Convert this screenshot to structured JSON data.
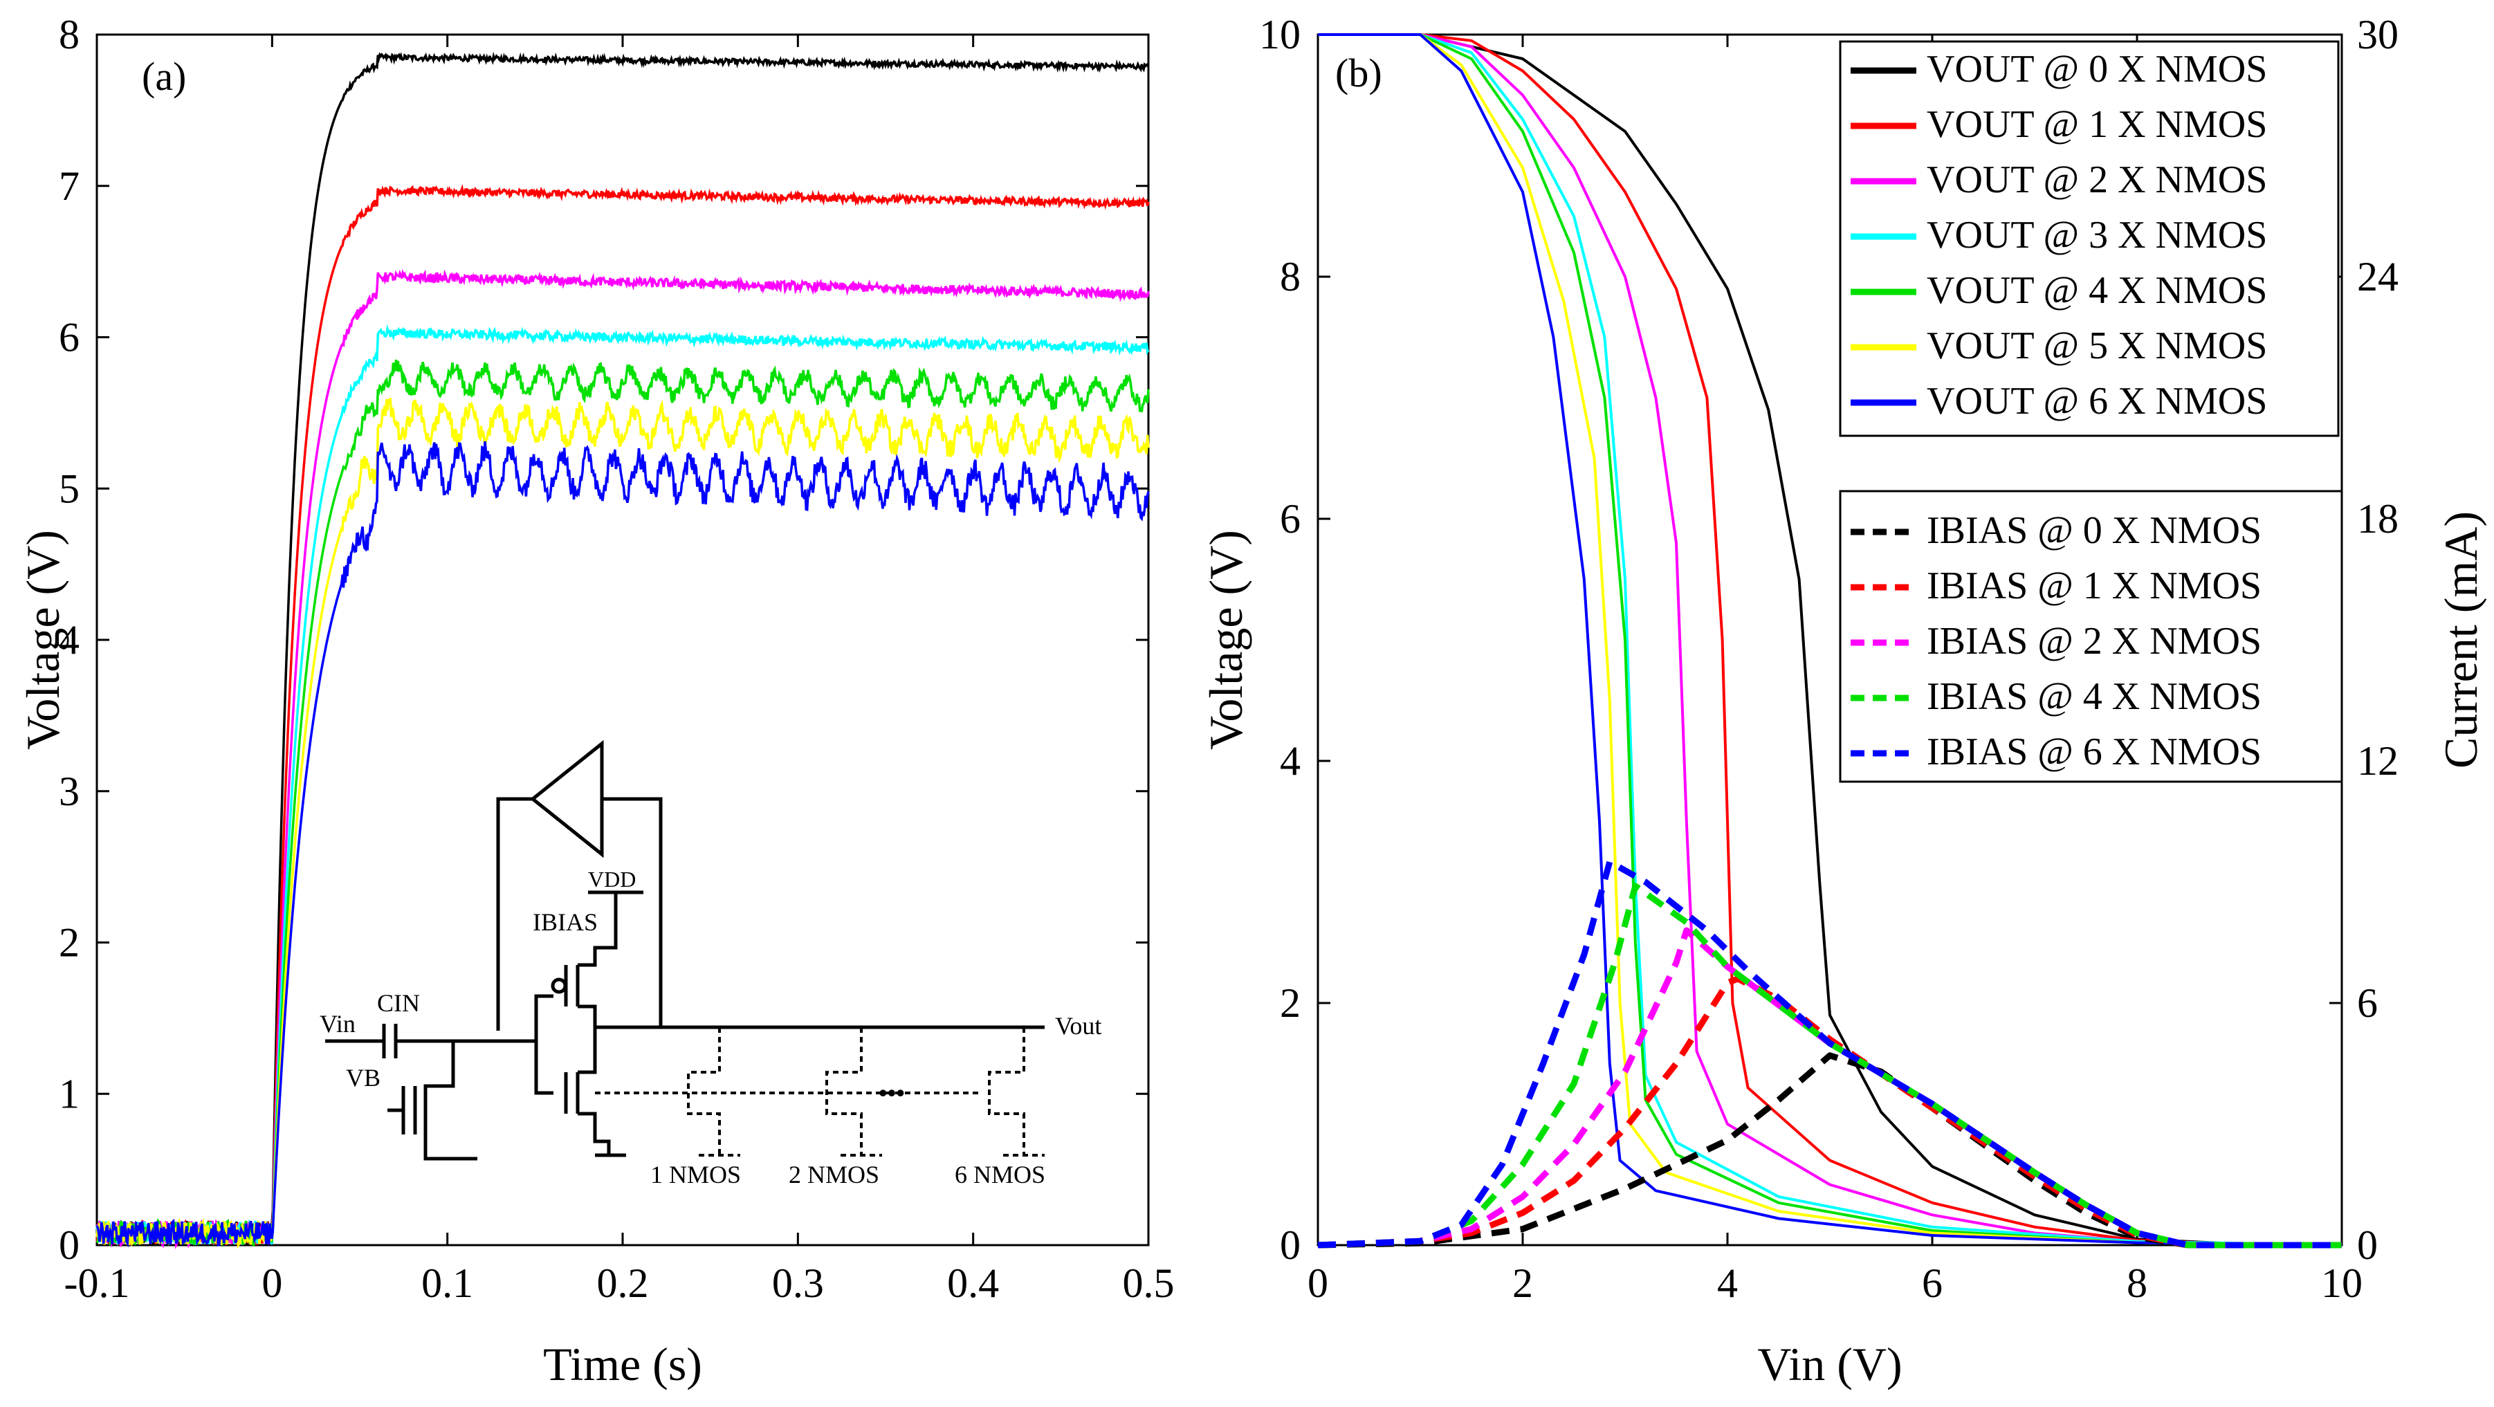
{
  "chart_data": [
    {
      "type": "line",
      "panel_label": "(a)",
      "xlabel": "Time (s)",
      "ylabel": "Voltage (V)",
      "xlim": [
        -0.1,
        0.5
      ],
      "ylim": [
        0,
        8
      ],
      "xticks": [
        "-0.1",
        "0",
        "0.1",
        "0.2",
        "0.3",
        "0.4",
        "0.5"
      ],
      "yticks": [
        "0",
        "1",
        "2",
        "3",
        "4",
        "5",
        "6",
        "7",
        "8"
      ],
      "series": [
        {
          "name": "0 X NMOS",
          "color": "#000000",
          "steady": 7.8,
          "ripple": 0.03,
          "ripple_periods": 0,
          "droop": 0.04,
          "overshoot": 0.05
        },
        {
          "name": "1 X NMOS",
          "color": "#ff0000",
          "steady": 6.9,
          "ripple": 0.04,
          "ripple_periods": 0,
          "droop": 0.05,
          "overshoot": 0.07
        },
        {
          "name": "2 X NMOS",
          "color": "#ff00ff",
          "steady": 6.3,
          "ripple": 0.05,
          "ripple_periods": 0,
          "droop": 0.05,
          "overshoot": 0.1
        },
        {
          "name": "3 X NMOS",
          "color": "#00ffff",
          "steady": 5.95,
          "ripple": 0.05,
          "ripple_periods": 0,
          "droop": 0.06,
          "overshoot": 0.08
        },
        {
          "name": "4 X NMOS",
          "color": "#00e000",
          "steady": 5.65,
          "ripple": 0.08,
          "ripple_periods": 30,
          "droop": 0.07,
          "overshoot": 0.08
        },
        {
          "name": "5 X NMOS",
          "color": "#ffff00",
          "steady": 5.35,
          "ripple": 0.1,
          "ripple_periods": 32,
          "droop": 0.08,
          "overshoot": 0.1
        },
        {
          "name": "6 X NMOS",
          "color": "#0000ff",
          "steady": 5.0,
          "ripple": 0.12,
          "ripple_periods": 34,
          "droop": 0.1,
          "overshoot": 0.15
        }
      ],
      "inset_circuit": {
        "labels": [
          "Vin",
          "CIN",
          "VB",
          "VDD",
          "IBIAS",
          "Vout",
          "1 NMOS",
          "2 NMOS",
          "6 NMOS",
          "•••"
        ]
      }
    },
    {
      "type": "line",
      "panel_label": "(b)",
      "xlabel": "Vin (V)",
      "ylabel": "Voltage (V)",
      "ylabel_right": "Current (mA)",
      "xlim": [
        0,
        10
      ],
      "ylim": [
        0,
        10
      ],
      "ylim_right": [
        0,
        30
      ],
      "xticks": [
        "0",
        "2",
        "4",
        "6",
        "8",
        "10"
      ],
      "yticks": [
        "0",
        "2",
        "4",
        "6",
        "8",
        "10"
      ],
      "yticks_right": [
        "0",
        "6",
        "12",
        "18",
        "24",
        "30"
      ],
      "vout_series": [
        {
          "name": "VOUT @ 0 X NMOS",
          "color": "#000000",
          "points": [
            [
              0,
              10
            ],
            [
              1,
              10
            ],
            [
              2,
              9.8
            ],
            [
              3,
              9.2
            ],
            [
              3.5,
              8.6
            ],
            [
              4,
              7.9
            ],
            [
              4.4,
              6.9
            ],
            [
              4.7,
              5.5
            ],
            [
              4.9,
              3
            ],
            [
              5.0,
              1.9
            ],
            [
              5.5,
              1.1
            ],
            [
              6,
              0.65
            ],
            [
              7,
              0.25
            ],
            [
              8,
              0.05
            ],
            [
              9,
              0.01
            ],
            [
              10,
              0
            ]
          ]
        },
        {
          "name": "VOUT @ 1 X NMOS",
          "color": "#ff0000",
          "points": [
            [
              0,
              10
            ],
            [
              1,
              10
            ],
            [
              1.5,
              9.95
            ],
            [
              2,
              9.7
            ],
            [
              2.5,
              9.3
            ],
            [
              3,
              8.7
            ],
            [
              3.5,
              7.9
            ],
            [
              3.8,
              7.0
            ],
            [
              3.95,
              5
            ],
            [
              4.05,
              2
            ],
            [
              4.2,
              1.3
            ],
            [
              5,
              0.7
            ],
            [
              6,
              0.35
            ],
            [
              7,
              0.15
            ],
            [
              8,
              0.04
            ],
            [
              9,
              0.01
            ],
            [
              10,
              0
            ]
          ]
        },
        {
          "name": "VOUT @ 2 X NMOS",
          "color": "#ff00ff",
          "points": [
            [
              0,
              10
            ],
            [
              1,
              10
            ],
            [
              1.5,
              9.9
            ],
            [
              2,
              9.5
            ],
            [
              2.5,
              8.9
            ],
            [
              3,
              8.0
            ],
            [
              3.3,
              7.0
            ],
            [
              3.5,
              5.8
            ],
            [
              3.6,
              3.5
            ],
            [
              3.7,
              1.6
            ],
            [
              4,
              1.0
            ],
            [
              5,
              0.5
            ],
            [
              6,
              0.25
            ],
            [
              7,
              0.1
            ],
            [
              8,
              0.03
            ],
            [
              9,
              0.01
            ],
            [
              10,
              0
            ]
          ]
        },
        {
          "name": "VOUT @ 3 X NMOS",
          "color": "#00ffff",
          "points": [
            [
              0,
              10
            ],
            [
              1,
              10
            ],
            [
              1.5,
              9.85
            ],
            [
              2,
              9.3
            ],
            [
              2.5,
              8.5
            ],
            [
              2.8,
              7.5
            ],
            [
              3.0,
              5.5
            ],
            [
              3.1,
              3.0
            ],
            [
              3.2,
              1.4
            ],
            [
              3.5,
              0.85
            ],
            [
              4.5,
              0.4
            ],
            [
              6,
              0.15
            ],
            [
              8,
              0.03
            ],
            [
              10,
              0
            ]
          ]
        },
        {
          "name": "VOUT @ 4 X NMOS",
          "color": "#00e000",
          "points": [
            [
              0,
              10
            ],
            [
              1,
              10
            ],
            [
              1.5,
              9.8
            ],
            [
              2,
              9.2
            ],
            [
              2.5,
              8.2
            ],
            [
              2.8,
              7.0
            ],
            [
              3.0,
              5.0
            ],
            [
              3.1,
              2.5
            ],
            [
              3.2,
              1.2
            ],
            [
              3.5,
              0.75
            ],
            [
              4.5,
              0.35
            ],
            [
              6,
              0.12
            ],
            [
              8,
              0.02
            ],
            [
              10,
              0
            ]
          ]
        },
        {
          "name": "VOUT @ 5 X NMOS",
          "color": "#ffff00",
          "points": [
            [
              0,
              10
            ],
            [
              1,
              10
            ],
            [
              1.4,
              9.75
            ],
            [
              2,
              8.9
            ],
            [
              2.4,
              7.8
            ],
            [
              2.7,
              6.5
            ],
            [
              2.85,
              4.5
            ],
            [
              2.95,
              2.0
            ],
            [
              3.05,
              1.0
            ],
            [
              3.4,
              0.6
            ],
            [
              4.5,
              0.28
            ],
            [
              6,
              0.1
            ],
            [
              8,
              0.02
            ],
            [
              10,
              0
            ]
          ]
        },
        {
          "name": "VOUT @ 6 X NMOS",
          "color": "#0000ff",
          "points": [
            [
              0,
              10
            ],
            [
              1,
              10
            ],
            [
              1.4,
              9.7
            ],
            [
              2,
              8.7
            ],
            [
              2.3,
              7.5
            ],
            [
              2.6,
              5.5
            ],
            [
              2.75,
              3.5
            ],
            [
              2.85,
              1.5
            ],
            [
              2.95,
              0.7
            ],
            [
              3.3,
              0.45
            ],
            [
              4.5,
              0.22
            ],
            [
              6,
              0.08
            ],
            [
              8,
              0.02
            ],
            [
              10,
              0
            ]
          ]
        }
      ],
      "ibias_series": [
        {
          "name": "IBIAS @ 0 X NMOS",
          "color": "#000000",
          "points_mA": [
            [
              0,
              0
            ],
            [
              1,
              0.05
            ],
            [
              2,
              0.4
            ],
            [
              2.5,
              0.9
            ],
            [
              3,
              1.4
            ],
            [
              3.5,
              2.0
            ],
            [
              4,
              2.6
            ],
            [
              4.5,
              3.6
            ],
            [
              5,
              4.7
            ],
            [
              5.5,
              4.3
            ],
            [
              6,
              3.4
            ],
            [
              6.5,
              2.5
            ],
            [
              7,
              1.6
            ],
            [
              7.5,
              0.8
            ],
            [
              8,
              0.2
            ],
            [
              8.5,
              0
            ],
            [
              10,
              0
            ]
          ]
        },
        {
          "name": "IBIAS @ 1 X NMOS",
          "color": "#ff0000",
          "points_mA": [
            [
              0,
              0
            ],
            [
              1,
              0.1
            ],
            [
              1.5,
              0.3
            ],
            [
              2,
              0.8
            ],
            [
              2.5,
              1.6
            ],
            [
              3,
              2.9
            ],
            [
              3.5,
              4.5
            ],
            [
              4.0,
              6.5
            ],
            [
              4.1,
              6.6
            ],
            [
              4.5,
              6.1
            ],
            [
              5,
              5.1
            ],
            [
              6,
              3.4
            ],
            [
              7,
              1.7
            ],
            [
              7.5,
              0.9
            ],
            [
              8,
              0.25
            ],
            [
              8.5,
              0
            ],
            [
              10,
              0
            ]
          ]
        },
        {
          "name": "IBIAS @ 2 X NMOS",
          "color": "#ff00ff",
          "points_mA": [
            [
              0,
              0
            ],
            [
              1,
              0.1
            ],
            [
              1.5,
              0.4
            ],
            [
              2,
              1.2
            ],
            [
              2.5,
              2.5
            ],
            [
              3,
              4.3
            ],
            [
              3.5,
              7.0
            ],
            [
              3.6,
              7.8
            ],
            [
              4,
              6.9
            ],
            [
              5,
              5.0
            ],
            [
              6,
              3.5
            ],
            [
              7,
              1.8
            ],
            [
              7.5,
              1.0
            ],
            [
              8,
              0.3
            ],
            [
              8.5,
              0
            ],
            [
              10,
              0
            ]
          ]
        },
        {
          "name": "IBIAS @ 4 X NMOS",
          "color": "#00e000",
          "points_mA": [
            [
              0,
              0
            ],
            [
              1,
              0.1
            ],
            [
              1.5,
              0.6
            ],
            [
              2,
              2.0
            ],
            [
              2.5,
              4.0
            ],
            [
              2.9,
              7.0
            ],
            [
              3.1,
              8.9
            ],
            [
              3.6,
              8.0
            ],
            [
              4,
              6.9
            ],
            [
              5,
              5.0
            ],
            [
              6,
              3.5
            ],
            [
              7,
              1.8
            ],
            [
              7.5,
              1.0
            ],
            [
              8,
              0.3
            ],
            [
              8.5,
              0
            ],
            [
              10,
              0
            ]
          ]
        },
        {
          "name": "IBIAS @ 6 X NMOS",
          "color": "#0000ff",
          "points_mA": [
            [
              0,
              0
            ],
            [
              1,
              0.1
            ],
            [
              1.4,
              0.5
            ],
            [
              1.8,
              2.0
            ],
            [
              2.2,
              4.5
            ],
            [
              2.6,
              7.2
            ],
            [
              2.85,
              9.5
            ],
            [
              3.2,
              9.0
            ],
            [
              3.8,
              7.8
            ],
            [
              4.2,
              6.8
            ],
            [
              5,
              5.0
            ],
            [
              6,
              3.5
            ],
            [
              7,
              1.8
            ],
            [
              7.5,
              1.0
            ],
            [
              8,
              0.3
            ],
            [
              8.5,
              0
            ],
            [
              10,
              0
            ]
          ]
        }
      ],
      "legend_vout": [
        "VOUT @ 0 X NMOS",
        "VOUT @ 1 X NMOS",
        "VOUT @ 2 X NMOS",
        "VOUT @ 3 X NMOS",
        "VOUT @ 4 X NMOS",
        "VOUT @ 5 X NMOS",
        "VOUT @ 6 X NMOS"
      ],
      "legend_ibias": [
        "IBIAS @ 0 X NMOS",
        "IBIAS @ 1 X NMOS",
        "IBIAS @ 2 X NMOS",
        "IBIAS @ 4 X NMOS",
        "IBIAS @ 6 X NMOS"
      ]
    }
  ]
}
